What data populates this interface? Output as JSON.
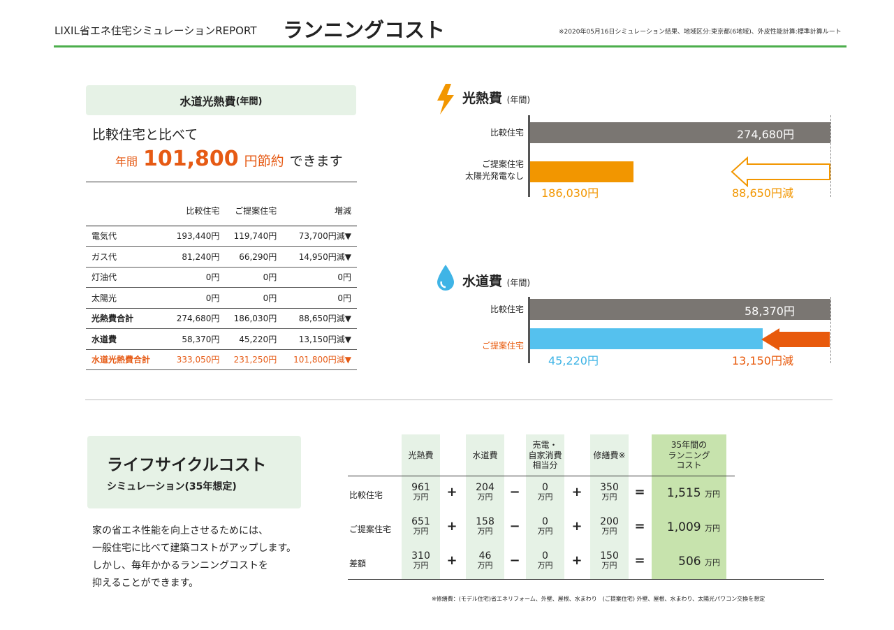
{
  "header": {
    "app_title": "LIXIL省エネ住宅シミュレーションREPORT",
    "page_title": "ランニングコスト",
    "note": "※2020年05月16日シミュレーション結果、地域区分:東京都(6地域)、外皮性能計算:標準計算ルート"
  },
  "summary": {
    "box_title": "水道光熱費",
    "box_sub": "(年間)",
    "lead": "比較住宅と比べて",
    "year": "年間",
    "amount": "101,800",
    "unit": "円節約",
    "suffix": "できます"
  },
  "cost_table": {
    "headers": [
      "",
      "比較住宅",
      "ご提案住宅",
      "増減"
    ],
    "rows": [
      [
        "電気代",
        "193,440円",
        "119,740円",
        "73,700円減▼"
      ],
      [
        "ガス代",
        "81,240円",
        "66,290円",
        "14,950円減▼"
      ],
      [
        "灯油代",
        "0円",
        "0円",
        "0円"
      ],
      [
        "太陽光",
        "0円",
        "0円",
        "0円"
      ],
      [
        "光熱費合計",
        "274,680円",
        "186,030円",
        "88,650円減▼"
      ],
      [
        "水道費",
        "58,370円",
        "45,220円",
        "13,150円減▼"
      ],
      [
        "水道光熱費合計",
        "333,050円",
        "231,250円",
        "101,800円減▼"
      ]
    ]
  },
  "energy_chart": {
    "title": "光熱費",
    "sub": "(年間)",
    "icon": "lightning-icon",
    "compare_label": "比較住宅",
    "compare_value": "274,680円",
    "proposal_label1": "ご提案住宅",
    "proposal_label2": "太陽光発電なし",
    "proposal_value": "186,030円",
    "reduction": "88,650円減",
    "compare_amount": 274680,
    "proposal_amount": 186030,
    "colors": {
      "compare": "#7a7672",
      "proposal": "#f29600"
    }
  },
  "water_chart": {
    "title": "水道費",
    "sub": "(年間)",
    "icon": "water-drop-icon",
    "compare_label": "比較住宅",
    "compare_value": "58,370円",
    "proposal_label": "ご提案住宅",
    "proposal_value": "45,220円",
    "reduction": "13,150円減",
    "compare_amount": 58370,
    "proposal_amount": 45220,
    "colors": {
      "compare": "#7a7672",
      "proposal": "#55c1ee",
      "arrow": "#e85a0c"
    }
  },
  "lifecycle": {
    "title": "ライフサイクルコスト",
    "subtitle": "シミュレーション(35年想定)",
    "desc": [
      "家の省エネ性能を向上させるためには、",
      "一般住宅に比べて建築コストがアップします。",
      "しかし、毎年かかるランニングコストを",
      "抑えることができます。"
    ],
    "headers": [
      "光熱費",
      "水道費",
      "売電・\n自家消費\n相当分",
      "修繕費※",
      "35年間の\nランニング\nコスト"
    ],
    "unit": "万円",
    "ops": [
      "+",
      "+",
      "−",
      "+",
      "="
    ],
    "rows": [
      {
        "label": "比較住宅",
        "values": [
          "961",
          "204",
          "0",
          "350"
        ],
        "total": "1,515"
      },
      {
        "label": "ご提案住宅",
        "values": [
          "651",
          "158",
          "0",
          "200"
        ],
        "total": "1,009"
      },
      {
        "label": "差額",
        "values": [
          "310",
          "46",
          "0",
          "150"
        ],
        "total": "506"
      }
    ],
    "footnote": "※修繕費：(モデル住宅)省エネリフォーム、外壁、屋根、水まわり　(ご提案住宅) 外壁、屋根、水まわり、太陽光パワコン交換を想定"
  }
}
